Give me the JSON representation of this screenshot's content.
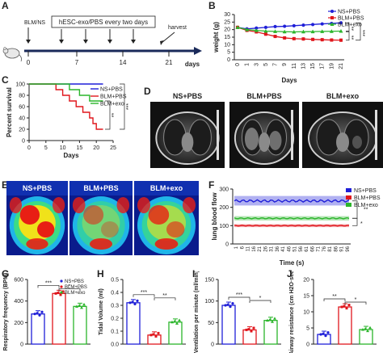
{
  "panel_labels": [
    "A",
    "B",
    "C",
    "D",
    "E",
    "F",
    "G",
    "H",
    "I",
    "J"
  ],
  "panelA": {
    "start_label": "BLM/NS",
    "treatment_label": "hESC-exo/PBS every two days",
    "end_label": "harvest",
    "days": [
      "0",
      "7",
      "14",
      "21"
    ],
    "axis_unit": "days"
  },
  "legend_groups": [
    "NS+PBS",
    "BLM+PBS",
    "BLM+exo"
  ],
  "colors": {
    "ns": "#1f1fd8",
    "blm": "#e0161c",
    "exo": "#2bb52b"
  },
  "significance": {
    "s3": "***",
    "s2": "**",
    "s1": "*"
  },
  "panelD_titles": [
    "NS+PBS",
    "BLM+PBS",
    "BLM+exo"
  ],
  "panelE_titles": [
    "NS+PBS",
    "BLM+PBS",
    "BLM+exo"
  ],
  "chart_data": [
    {
      "panel": "B",
      "type": "line",
      "ylabel": "weight (g)",
      "xlabel": "Days",
      "ylim": [
        0,
        30
      ],
      "yticks": [
        0,
        5,
        10,
        15,
        20,
        25,
        30
      ],
      "x": [
        "0",
        "1",
        "3",
        "5",
        "7",
        "9",
        "11",
        "13",
        "15",
        "17",
        "19",
        "21"
      ],
      "series": [
        {
          "name": "NS+PBS",
          "values": [
            21.5,
            20.5,
            21,
            21.5,
            22,
            22.2,
            22.6,
            23,
            23.4,
            23.8,
            24.1,
            24.5
          ]
        },
        {
          "name": "BLM+PBS",
          "values": [
            21.5,
            19.5,
            18.5,
            17,
            15.5,
            14.5,
            14,
            13.8,
            13.5,
            13.3,
            13.1,
            13
          ]
        },
        {
          "name": "BLM+exo",
          "values": [
            21.5,
            20,
            19.5,
            19,
            18.8,
            18.6,
            18.5,
            18.6,
            18.7,
            18.8,
            18.9,
            19
          ]
        }
      ],
      "brackets": [
        "**",
        "***",
        "**"
      ]
    },
    {
      "panel": "C",
      "type": "line",
      "ylabel": "Percent survival",
      "xlabel": "Days",
      "ylim": [
        0,
        100
      ],
      "yticks": [
        0,
        20,
        40,
        60,
        80,
        100
      ],
      "xticks": [
        0,
        5,
        10,
        15,
        20,
        25
      ],
      "series": [
        {
          "name": "NS+PBS",
          "points": [
            [
              0,
              100
            ],
            [
              22,
              100
            ]
          ]
        },
        {
          "name": "BLM+PBS",
          "points": [
            [
              0,
              100
            ],
            [
              8,
              100
            ],
            [
              8,
              90
            ],
            [
              10,
              90
            ],
            [
              10,
              80
            ],
            [
              12,
              80
            ],
            [
              12,
              70
            ],
            [
              14,
              70
            ],
            [
              14,
              60
            ],
            [
              16,
              60
            ],
            [
              16,
              50
            ],
            [
              18,
              50
            ],
            [
              18,
              40
            ],
            [
              19,
              40
            ],
            [
              19,
              30
            ],
            [
              20,
              30
            ],
            [
              20,
              20
            ],
            [
              22,
              20
            ]
          ]
        },
        {
          "name": "BLM+exo",
          "points": [
            [
              0,
              100
            ],
            [
              12,
              100
            ],
            [
              12,
              90
            ],
            [
              15,
              90
            ],
            [
              15,
              80
            ],
            [
              18,
              80
            ],
            [
              18,
              70
            ],
            [
              22,
              70
            ]
          ]
        }
      ],
      "brackets": [
        "***",
        "**"
      ]
    },
    {
      "panel": "F",
      "type": "line",
      "ylabel": "lung blood flow",
      "xlabel": "Time (s)",
      "ylim": [
        0,
        300
      ],
      "yticks": [
        0,
        100,
        200,
        300
      ],
      "xticks": [
        "1",
        "6",
        "11",
        "16",
        "21",
        "26",
        "31",
        "36",
        "41",
        "46",
        "51",
        "56",
        "61",
        "66",
        "71",
        "76",
        "81",
        "86",
        "91",
        "96"
      ],
      "series": [
        {
          "name": "NS+PBS",
          "mean": 235,
          "range": [
            210,
            262
          ]
        },
        {
          "name": "BLM+PBS",
          "mean": 100,
          "range": [
            92,
            108
          ]
        },
        {
          "name": "BLM+exo",
          "mean": 140,
          "range": [
            128,
            152
          ]
        }
      ],
      "brackets": [
        "**",
        "*"
      ]
    },
    {
      "panel": "G",
      "type": "bar",
      "ylabel": "Respiratory frequency (BPM)",
      "ylim": [
        0,
        600
      ],
      "yticks": [
        0,
        200,
        400,
        600
      ],
      "categories": [
        "NS+PBS",
        "BLM+PBS",
        "BLM+exo"
      ],
      "values": [
        280,
        470,
        350
      ],
      "legend": [
        "NS+PBS",
        "BLM+PBS",
        "BLM+exo"
      ],
      "brackets": [
        "***",
        "*"
      ]
    },
    {
      "panel": "H",
      "type": "bar",
      "ylabel": "Tidal Volume (ml)",
      "ylim": [
        0,
        0.5
      ],
      "yticks": [
        0.0,
        0.1,
        0.2,
        0.3,
        0.4,
        0.5
      ],
      "categories": [
        "NS+PBS",
        "BLM+PBS",
        "BLM+exo"
      ],
      "values": [
        0.32,
        0.07,
        0.17
      ],
      "brackets": [
        "***",
        "**"
      ]
    },
    {
      "panel": "I",
      "type": "bar",
      "ylabel": "Ventilation per minute (ml/min)",
      "ylim": [
        0,
        150
      ],
      "yticks": [
        0,
        50,
        100,
        150
      ],
      "categories": [
        "NS+PBS",
        "BLM+PBS",
        "BLM+exo"
      ],
      "values": [
        90,
        33,
        55
      ],
      "brackets": [
        "***",
        "*"
      ]
    },
    {
      "panel": "J",
      "type": "bar",
      "ylabel": "Airway resistance (cm H2O·sec)",
      "ylim": [
        0,
        20
      ],
      "yticks": [
        0,
        5,
        10,
        15,
        20
      ],
      "categories": [
        "NS+PBS",
        "BLM+PBS",
        "BLM+exo"
      ],
      "values": [
        3,
        11.5,
        4.5
      ],
      "brackets": [
        "**",
        "*"
      ]
    }
  ]
}
